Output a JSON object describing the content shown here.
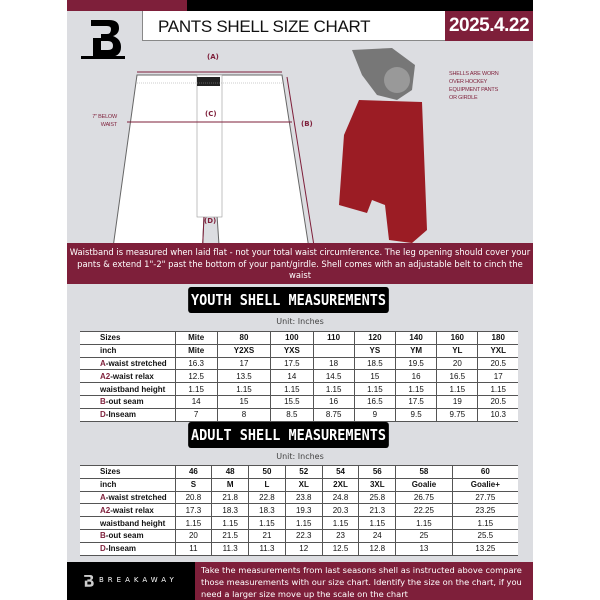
{
  "header": {
    "title": "PANTS SHELL SIZE CHART",
    "date": "2025.4.22"
  },
  "colors": {
    "accent": "#7e1f3a",
    "background": "#dcdde1"
  },
  "diagram": {
    "label_a": "(A)",
    "label_b": "(B)",
    "label_c": "(C)",
    "label_d": "(D)",
    "below_waist": "7\" BELOW WAIST",
    "shell_note": [
      "SHELLS ARE WORN",
      "OVER HOCKEY",
      "EQUIPMENT PANTS",
      "OR GIRDLE"
    ]
  },
  "info_band": "Waistband is measured when laid flat - not your total waist circumference. The leg opening should cover your pants & extend 1\"-2\" past the bottom of your pant/girdle. Shell comes with an adjustable belt to cinch the waist",
  "youth": {
    "title": "YOUTH SHELL MEASUREMENTS",
    "unit": "Unit: Inches",
    "rows": [
      {
        "p": "",
        "l": "Sizes",
        "v": [
          "Mite",
          "80",
          "100",
          "110",
          "120",
          "140",
          "160",
          "180"
        ]
      },
      {
        "p": "",
        "l": "inch",
        "v": [
          "Mite",
          "Y2XS",
          "YXS",
          "",
          "YS",
          "YM",
          "YL",
          "YXL"
        ]
      },
      {
        "p": "A",
        "l": "-waist stretched",
        "v": [
          "16.3",
          "17",
          "17.5",
          "18",
          "18.5",
          "19.5",
          "20",
          "20.5"
        ]
      },
      {
        "p": "A2",
        "l": "-waist relax",
        "v": [
          "12.5",
          "13.5",
          "14",
          "14.5",
          "15",
          "16",
          "16.5",
          "17"
        ]
      },
      {
        "p": "",
        "l": "waistband height",
        "v": [
          "1.15",
          "1.15",
          "1.15",
          "1.15",
          "1.15",
          "1.15",
          "1.15",
          "1.15"
        ]
      },
      {
        "p": "B",
        "l": "-out seam",
        "v": [
          "14",
          "15",
          "15.5",
          "16",
          "16.5",
          "17.5",
          "19",
          "20.5"
        ]
      },
      {
        "p": "D",
        "l": "-Inseam",
        "v": [
          "7",
          "8",
          "8.5",
          "8.75",
          "9",
          "9.5",
          "9.75",
          "10.3"
        ]
      }
    ]
  },
  "adult": {
    "title": "ADULT SHELL MEASUREMENTS",
    "unit": "Unit: Inches",
    "rows": [
      {
        "p": "",
        "l": "Sizes",
        "v": [
          "46",
          "48",
          "50",
          "52",
          "54",
          "56",
          "58",
          "60"
        ]
      },
      {
        "p": "",
        "l": "inch",
        "v": [
          "S",
          "M",
          "L",
          "XL",
          "2XL",
          "3XL",
          "Goalie",
          "Goalie+"
        ]
      },
      {
        "p": "A",
        "l": "-waist stretched",
        "v": [
          "20.8",
          "21.8",
          "22.8",
          "23.8",
          "24.8",
          "25.8",
          "26.75",
          "27.75"
        ]
      },
      {
        "p": "A2",
        "l": "-waist relax",
        "v": [
          "17.3",
          "18.3",
          "18.3",
          "19.3",
          "20.3",
          "21.3",
          "22.25",
          "23.25"
        ]
      },
      {
        "p": "",
        "l": "waistband height",
        "v": [
          "1.15",
          "1.15",
          "1.15",
          "1.15",
          "1.15",
          "1.15",
          "1.15",
          "1.15"
        ]
      },
      {
        "p": "B",
        "l": "-out seam",
        "v": [
          "20",
          "21.5",
          "21",
          "22.3",
          "23",
          "24",
          "25",
          "25.5"
        ]
      },
      {
        "p": "D",
        "l": "-Inseam",
        "v": [
          "11",
          "11.3",
          "11.3",
          "12",
          "12.5",
          "12.8",
          "13",
          "13.25"
        ]
      }
    ]
  },
  "footer": {
    "brand": "BREAKAWAY",
    "text": "Take the measurements from last seasons shell as instructed above compare those measurements  with our size chart. Identify the size on the chart, if you need a larger size move up the scale on the chart"
  }
}
